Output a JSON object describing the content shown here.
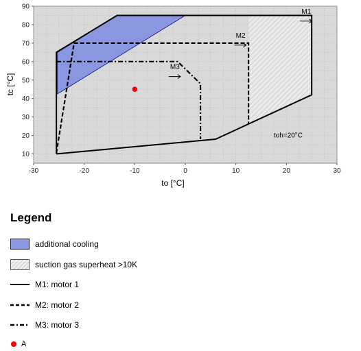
{
  "chart_data": {
    "type": "scatter",
    "xlabel": "to [°C]",
    "ylabel": "tc [°C]",
    "xlim": [
      -30,
      30
    ],
    "ylim": [
      5,
      90
    ],
    "xticks": [
      "-30",
      "-20",
      "-10",
      "0",
      "10",
      "20",
      "30"
    ],
    "yticks": [
      "10",
      "20",
      "30",
      "40",
      "50",
      "60",
      "70",
      "80",
      "90"
    ],
    "xtick_values": [
      -30,
      -20,
      -10,
      0,
      10,
      20,
      30
    ],
    "ytick_values": [
      10,
      20,
      30,
      40,
      50,
      60,
      70,
      80,
      90
    ],
    "grid": true,
    "regions": {
      "additional_cooling": {
        "x": [
          -25.3,
          -13.5,
          0,
          -25.3
        ],
        "y": [
          65,
          85,
          85,
          42.5
        ]
      },
      "suction_gas_superheat": {
        "x": [
          12.5,
          25,
          25,
          12.5
        ],
        "y": [
          85,
          85,
          42,
          26
        ]
      }
    },
    "series": [
      {
        "name": "M1: motor 1",
        "style": "solid",
        "x": [
          -25.5,
          -25.5,
          -13.5,
          25,
          25,
          6,
          -25.5
        ],
        "y": [
          10,
          65,
          85,
          85,
          42,
          18,
          10
        ]
      },
      {
        "name": "M2: motor 2",
        "style": "dashed",
        "x": [
          -25.5,
          -22,
          12.5,
          12.5
        ],
        "y": [
          10.5,
          70,
          70,
          26
        ]
      },
      {
        "name": "M3: motor 3",
        "style": "dashdot",
        "x": [
          -25.5,
          -1.5,
          3,
          3
        ],
        "y": [
          60,
          60,
          48,
          18
        ]
      }
    ],
    "annotations": [
      {
        "text": "M1",
        "x": 23,
        "y": 86
      },
      {
        "text": "M2",
        "x": 10,
        "y": 73
      },
      {
        "text": "M3",
        "x": -3,
        "y": 56
      },
      {
        "text": "toh=20°C",
        "x": 17.5,
        "y": 19
      }
    ],
    "point": {
      "name": "A",
      "x": -10,
      "y": 45,
      "color": "#ff0000"
    }
  },
  "legend": {
    "title": "Legend",
    "items": [
      {
        "label": "additional cooling",
        "symbol": "fill-blue"
      },
      {
        "label": "suction gas superheat >10K",
        "symbol": "hatch-gray"
      },
      {
        "label": "M1: motor 1",
        "symbol": "solid-line"
      },
      {
        "label": "M2: motor 2",
        "symbol": "dashed-line"
      },
      {
        "label": "M3: motor 3",
        "symbol": "dashdot-line"
      },
      {
        "label": "A",
        "symbol": "red-dot"
      }
    ]
  },
  "colors": {
    "plot_bg": "#d9d9d9",
    "cooling_fill": "#8a97e0",
    "grid": "#b0b0b0",
    "line": "#000000",
    "point": "#ff0000"
  }
}
